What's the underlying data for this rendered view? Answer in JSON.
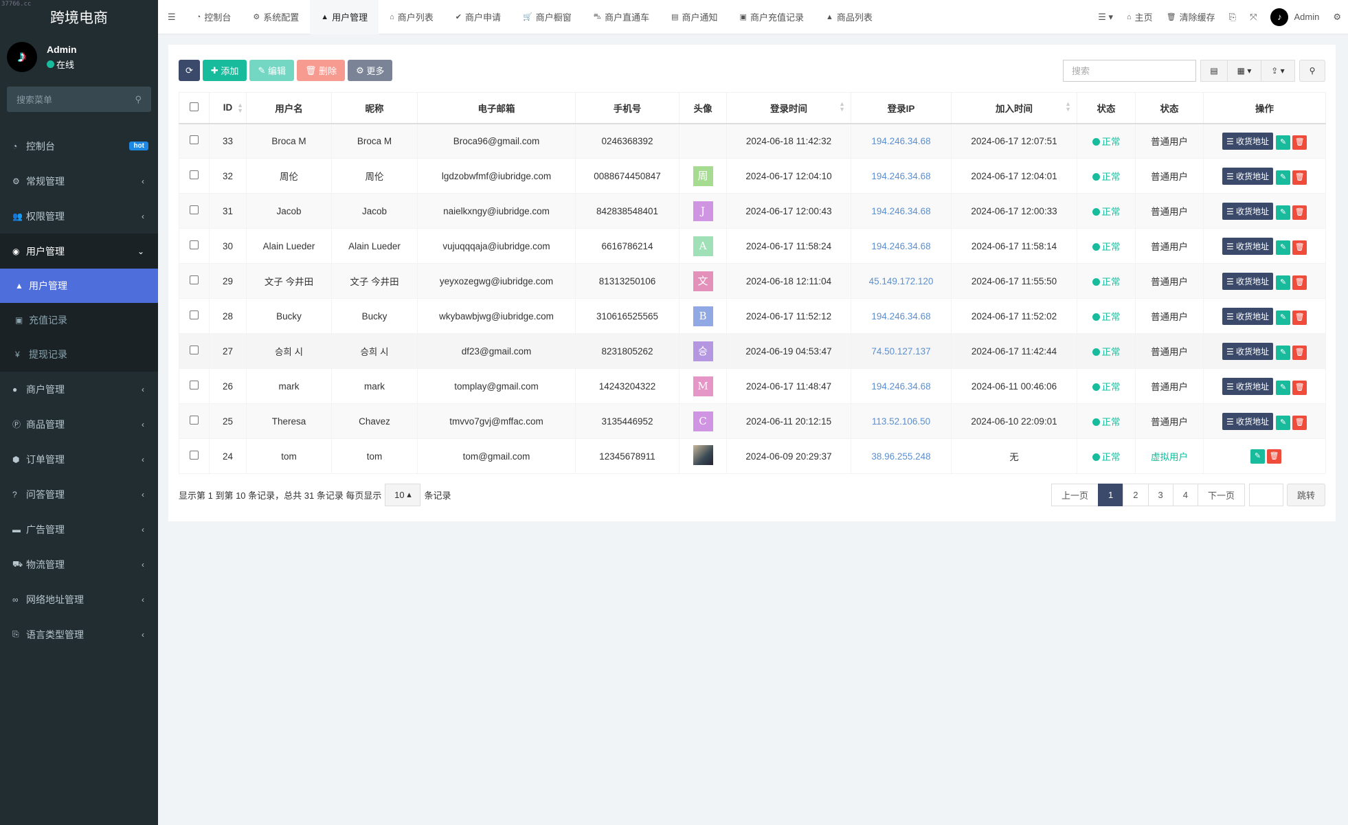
{
  "app": {
    "title": "跨境电商",
    "watermark": "37766.cc"
  },
  "user": {
    "name": "Admin",
    "status": "在线"
  },
  "menu_search": {
    "placeholder": "搜索菜单"
  },
  "sidebar": {
    "items": [
      {
        "label": "控制台",
        "icon": "dashboard-icon",
        "badge": "hot"
      },
      {
        "label": "常规管理",
        "icon": "cogs-icon"
      },
      {
        "label": "权限管理",
        "icon": "users-icon"
      },
      {
        "label": "用户管理",
        "icon": "user-circle-icon",
        "open": true,
        "children": [
          {
            "label": "用户管理",
            "icon": "user-icon",
            "active": true
          },
          {
            "label": "充值记录",
            "icon": "money-icon"
          },
          {
            "label": "提现记录",
            "icon": "yen-icon"
          }
        ]
      },
      {
        "label": "商户管理",
        "icon": "apple-icon"
      },
      {
        "label": "商品管理",
        "icon": "product-icon"
      },
      {
        "label": "订单管理",
        "icon": "cube-icon"
      },
      {
        "label": "问答管理",
        "icon": "question-icon"
      },
      {
        "label": "广告管理",
        "icon": "ad-icon"
      },
      {
        "label": "物流管理",
        "icon": "truck-icon"
      },
      {
        "label": "网络地址管理",
        "icon": "link-icon"
      },
      {
        "label": "语言类型管理",
        "icon": "language-icon"
      }
    ]
  },
  "topbar": {
    "tabs": [
      {
        "label": "控制台",
        "icon": "dashboard-icon"
      },
      {
        "label": "系统配置",
        "icon": "cog-icon"
      },
      {
        "label": "用户管理",
        "icon": "user-icon",
        "active": true
      },
      {
        "label": "商户列表",
        "icon": "home-icon"
      },
      {
        "label": "商户申请",
        "icon": "check-circle-icon"
      },
      {
        "label": "商户橱窗",
        "icon": "cart-icon"
      },
      {
        "label": "商户直通车",
        "icon": "car-icon"
      },
      {
        "label": "商户通知",
        "icon": "newspaper-icon"
      },
      {
        "label": "商户充值记录",
        "icon": "money-icon"
      },
      {
        "label": "商品列表",
        "icon": "shopping-bag-icon"
      }
    ],
    "home": "主页",
    "clear_cache": "清除缓存",
    "admin": "Admin"
  },
  "toolbar": {
    "add": "添加",
    "edit": "编辑",
    "delete": "删除",
    "more": "更多",
    "search_placeholder": "搜索"
  },
  "colors": {
    "sidebar": "#222d32",
    "active": "#4e6edb",
    "primary": "#3b4a6b",
    "success": "#18bc9c",
    "danger": "#f04c3c",
    "link": "#5b8fd0"
  },
  "table": {
    "columns": [
      "ID",
      "用户名",
      "昵称",
      "电子邮箱",
      "手机号",
      "头像",
      "登录时间",
      "登录IP",
      "加入时间",
      "状态",
      "状态",
      "操作"
    ],
    "address_label": "收货地址",
    "rows": [
      {
        "id": "33",
        "username": "Broca M",
        "nickname": "Broca M",
        "email": "Broca96@gmail.com",
        "phone": "0246368392",
        "avatar": "",
        "avatar_color": "",
        "login_time": "2024-06-18 11:42:32",
        "login_ip": "194.246.34.68",
        "join_time": "2024-06-17 12:07:51",
        "status": "正常",
        "type": "普通用户"
      },
      {
        "id": "32",
        "username": "周伦",
        "nickname": "周伦",
        "email": "lgdzobwfmf@iubridge.com",
        "phone": "0088674450847",
        "avatar": "周",
        "avatar_color": "#a5dc92",
        "login_time": "2024-06-17 12:04:10",
        "login_ip": "194.246.34.68",
        "join_time": "2024-06-17 12:04:01",
        "status": "正常",
        "type": "普通用户"
      },
      {
        "id": "31",
        "username": "Jacob",
        "nickname": "Jacob",
        "email": "naielkxngy@iubridge.com",
        "phone": "842838548401",
        "avatar": "J",
        "avatar_color": "#cf95e3",
        "login_time": "2024-06-17 12:00:43",
        "login_ip": "194.246.34.68",
        "join_time": "2024-06-17 12:00:33",
        "status": "正常",
        "type": "普通用户"
      },
      {
        "id": "30",
        "username": "Alain Lueder",
        "nickname": "Alain Lueder",
        "email": "vujuqqqaja@iubridge.com",
        "phone": "6616786214",
        "avatar": "A",
        "avatar_color": "#9fe0b6",
        "login_time": "2024-06-17 11:58:24",
        "login_ip": "194.246.34.68",
        "join_time": "2024-06-17 11:58:14",
        "status": "正常",
        "type": "普通用户"
      },
      {
        "id": "29",
        "username": "文子 今井田",
        "nickname": "文子 今井田",
        "email": "yeyxozegwg@iubridge.com",
        "phone": "81313250106",
        "avatar": "文",
        "avatar_color": "#e391bb",
        "login_time": "2024-06-18 12:11:04",
        "login_ip": "45.149.172.120",
        "join_time": "2024-06-17 11:55:50",
        "status": "正常",
        "type": "普通用户"
      },
      {
        "id": "28",
        "username": "Bucky",
        "nickname": "Bucky",
        "email": "wkybawbjwg@iubridge.com",
        "phone": "310616525565",
        "avatar": "B",
        "avatar_color": "#90a9e4",
        "login_time": "2024-06-17 11:52:12",
        "login_ip": "194.246.34.68",
        "join_time": "2024-06-17 11:52:02",
        "status": "正常",
        "type": "普通用户"
      },
      {
        "id": "27",
        "username": "승희 시",
        "nickname": "승희 시",
        "email": "df23@gmail.com",
        "phone": "8231805262",
        "avatar": "승",
        "avatar_color": "#b497e0",
        "login_time": "2024-06-19 04:53:47",
        "login_ip": "74.50.127.137",
        "join_time": "2024-06-17 11:42:44",
        "status": "正常",
        "type": "普通用户"
      },
      {
        "id": "26",
        "username": "mark",
        "nickname": "mark",
        "email": "tomplay@gmail.com",
        "phone": "14243204322",
        "avatar": "M",
        "avatar_color": "#e596c6",
        "login_time": "2024-06-17 11:48:47",
        "login_ip": "194.246.34.68",
        "join_time": "2024-06-11 00:46:06",
        "status": "正常",
        "type": "普通用户"
      },
      {
        "id": "25",
        "username": "Theresa",
        "nickname": "Chavez",
        "email": "tmvvo7gvj@mffac.com",
        "phone": "3135446952",
        "avatar": "C",
        "avatar_color": "#cf95e3",
        "login_time": "2024-06-11 20:12:15",
        "login_ip": "113.52.106.50",
        "join_time": "2024-06-10 22:09:01",
        "status": "正常",
        "type": "普通用户"
      },
      {
        "id": "24",
        "username": "tom",
        "nickname": "tom",
        "email": "tom@gmail.com",
        "phone": "12345678911",
        "avatar": "photo",
        "avatar_color": "",
        "login_time": "2024-06-09 20:29:37",
        "login_ip": "38.96.255.248",
        "join_time": "无",
        "status": "正常",
        "type": "虚拟用户"
      }
    ]
  },
  "footer": {
    "summary": "显示第 1 到第 10 条记录，总共 31 条记录 每页显示",
    "page_size": "10",
    "suffix": "条记录"
  },
  "pagination": {
    "prev": "上一页",
    "pages": [
      "1",
      "2",
      "3",
      "4"
    ],
    "current": "1",
    "next": "下一页",
    "jump": "跳转"
  }
}
